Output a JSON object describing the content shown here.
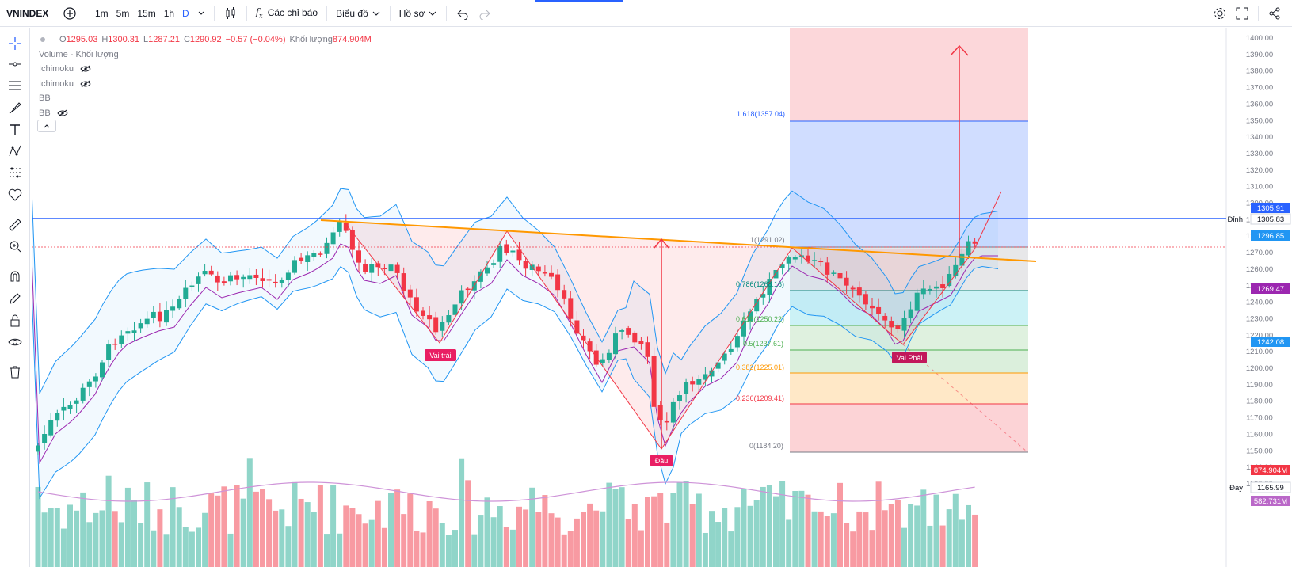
{
  "symbol": "VNINDEX",
  "timeframes": [
    "1m",
    "5m",
    "15m",
    "1h",
    "D"
  ],
  "toolbar": {
    "indicators_label": "Các chỉ báo",
    "chart_label": "Biểu đồ",
    "profile_label": "Hồ sơ"
  },
  "legend": {
    "ohlc": {
      "o_key": "O",
      "o": "1295.03",
      "h_key": "H",
      "h": "1300.31",
      "l_key": "L",
      "l": "1287.21",
      "c_key": "C",
      "c": "1290.92",
      "chg": "−0.57 (−0.04%)",
      "vol_key": "Khối lượng",
      "vol": "874.904M"
    },
    "rows": [
      "Volume - Khối lượng",
      "Ichimoku",
      "Ichimoku",
      "BB",
      "BB"
    ]
  },
  "price_axis_ticks": [
    "1400.00",
    "1390.00",
    "1380.00",
    "1370.00",
    "1360.00",
    "1350.00",
    "1340.00",
    "1330.00",
    "1320.00",
    "1310.00",
    "1300.00",
    "1290.00",
    "1280.00",
    "1270.00",
    "1260.00",
    "1250.00",
    "1240.00",
    "1230.00",
    "1220.00",
    "1210.00",
    "1200.00",
    "1190.00",
    "1180.00",
    "1170.00",
    "1160.00",
    "1150.00",
    "1140.00",
    "1130.00"
  ],
  "axis_tags": {
    "top_blue": "1305.91",
    "dinh_label": "Đỉnh",
    "dinh_value": "1305.83",
    "current": "1296.85",
    "purple": "1269.47",
    "bb_low": "1242.08",
    "vol_red": "874.904M",
    "day_label": "Đáy",
    "day_value": "1165.99",
    "vol_ma": "582.731M"
  },
  "fib": {
    "levels": [
      {
        "label": "1.618(1357.04)",
        "color": "#2962ff"
      },
      {
        "label": "1(1291.02)",
        "color": "#787b86"
      },
      {
        "label": "0.786(1268.16)",
        "color": "#00897b"
      },
      {
        "label": "0.618(1250.22)",
        "color": "#4caf50"
      },
      {
        "label": "0.5(1237.61)",
        "color": "#4caf50"
      },
      {
        "label": "0.382(1225.01)",
        "color": "#ff9800"
      },
      {
        "label": "0.236(1209.41)",
        "color": "#f23645"
      },
      {
        "label": "0(1184.20)",
        "color": "#787b86"
      }
    ]
  },
  "annotations": {
    "left_shoulder": "Vai trái",
    "head": "Đầu",
    "right_shoulder": "Vai Phải"
  },
  "colors": {
    "up": "#22ab94",
    "down": "#f23645",
    "bb": "#2196f3",
    "neckline": "#ff9800",
    "resistance": "#2962ff",
    "ma": "#9c27b0"
  }
}
